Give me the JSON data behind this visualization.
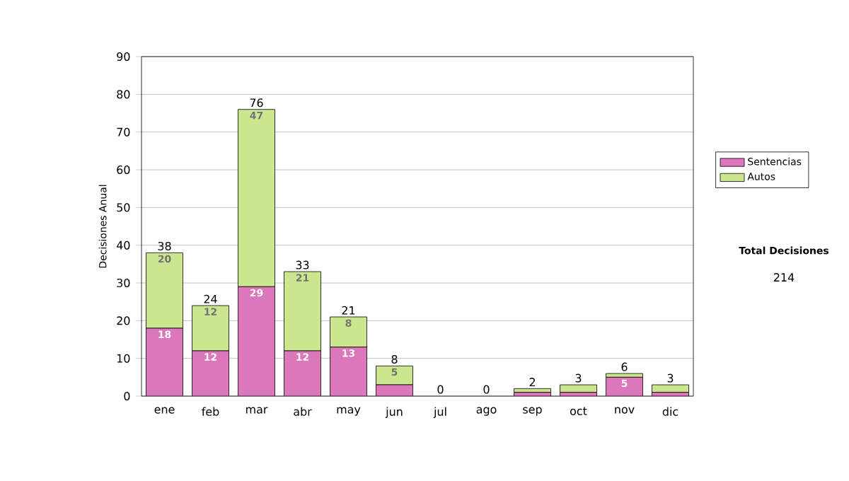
{
  "chart_data": {
    "type": "bar",
    "stacked": true,
    "ylabel": "Decisiones Anual",
    "categories": [
      "ene",
      "feb",
      "mar",
      "abr",
      "may",
      "jun",
      "jul",
      "ago",
      "sep",
      "oct",
      "nov",
      "dic"
    ],
    "series": [
      {
        "name": "Sentencias",
        "color": "#dd77bb",
        "values": [
          18,
          12,
          29,
          12,
          13,
          3,
          0,
          0,
          1,
          1,
          5,
          1
        ],
        "value_labels": [
          "18",
          "12",
          "29",
          "12",
          "13",
          null,
          null,
          null,
          null,
          null,
          "5",
          null
        ]
      },
      {
        "name": "Autos",
        "color": "#cce58f",
        "values": [
          20,
          12,
          47,
          21,
          8,
          5,
          0,
          0,
          1,
          2,
          1,
          2
        ],
        "value_labels": [
          "20",
          "12",
          "47",
          "21",
          "8",
          "5",
          null,
          null,
          null,
          null,
          null,
          null
        ]
      }
    ],
    "totals": [
      "38",
      "24",
      "76",
      "33",
      "21",
      "8",
      "0",
      "0",
      "2",
      "3",
      "6",
      "3"
    ],
    "ylim": [
      0,
      90
    ],
    "yticks": [
      0,
      10,
      20,
      30,
      40,
      50,
      60,
      70,
      80,
      90
    ],
    "grid": "y",
    "legend": "right",
    "annotations": [
      "Total Decisiones",
      "214"
    ]
  }
}
